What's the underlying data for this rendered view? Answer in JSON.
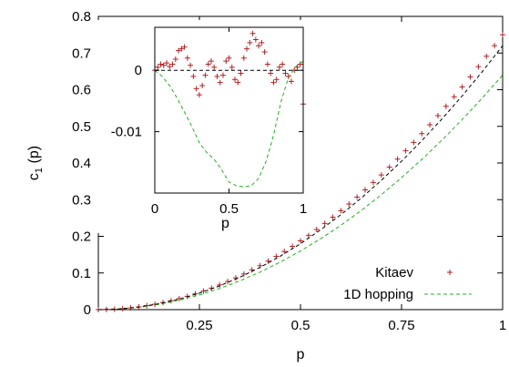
{
  "chart_data": [
    {
      "type": "scatter+line",
      "title": "",
      "xlabel": "p",
      "ylabel": "c",
      "ylabel_sub": "1",
      "ylabel_suffix": " (p)",
      "xlim": [
        0,
        1
      ],
      "ylim": [
        0,
        0.8
      ],
      "xticks": [
        0.25,
        0.5,
        0.75,
        1
      ],
      "xtick_labels": [
        "0.25",
        "0.5",
        "0.75",
        "1"
      ],
      "yticks": [
        0,
        0.1,
        0.2,
        0.3,
        0.4,
        0.5,
        0.6,
        0.7,
        0.8
      ],
      "ytick_labels": [
        "0",
        "0.1",
        "0.2",
        "0.3",
        "0.4",
        "0.5",
        "0.6",
        "0.7",
        "0.8"
      ],
      "grid": false,
      "legend_position": "bottom-right",
      "series": [
        {
          "name": "Kitaev",
          "style": "points",
          "marker": "+",
          "color": "#b22222",
          "x": [
            0.0,
            0.02,
            0.04,
            0.06,
            0.08,
            0.1,
            0.12,
            0.14,
            0.16,
            0.18,
            0.2,
            0.22,
            0.24,
            0.26,
            0.28,
            0.3,
            0.32,
            0.34,
            0.36,
            0.38,
            0.4,
            0.42,
            0.44,
            0.46,
            0.48,
            0.5,
            0.52,
            0.54,
            0.56,
            0.58,
            0.6,
            0.62,
            0.64,
            0.66,
            0.68,
            0.7,
            0.72,
            0.74,
            0.76,
            0.78,
            0.8,
            0.82,
            0.84,
            0.86,
            0.88,
            0.9,
            0.92,
            0.94,
            0.96,
            0.98,
            1.0
          ],
          "y": [
            0.0,
            0.0003,
            0.0012,
            0.0027,
            0.0048,
            0.0075,
            0.0108,
            0.0147,
            0.0192,
            0.0243,
            0.03,
            0.0363,
            0.0432,
            0.0507,
            0.0588,
            0.0675,
            0.0768,
            0.0867,
            0.0972,
            0.1083,
            0.12,
            0.1323,
            0.1452,
            0.1587,
            0.1728,
            0.1875,
            0.2028,
            0.2187,
            0.2352,
            0.2523,
            0.27,
            0.2883,
            0.3072,
            0.3267,
            0.3468,
            0.3675,
            0.3888,
            0.4107,
            0.4332,
            0.4563,
            0.48,
            0.5043,
            0.5292,
            0.5547,
            0.5808,
            0.6075,
            0.6348,
            0.6627,
            0.6912,
            0.7203,
            0.75
          ]
        },
        {
          "name": "1D hopping",
          "style": "dashed",
          "color": "#22b022",
          "x": [
            0.0,
            0.05,
            0.1,
            0.15,
            0.2,
            0.25,
            0.3,
            0.35,
            0.4,
            0.45,
            0.5,
            0.55,
            0.6,
            0.65,
            0.7,
            0.75,
            0.8,
            0.85,
            0.9,
            0.95,
            1.0
          ],
          "y": [
            0.0,
            0.0016,
            0.0064,
            0.0144,
            0.0256,
            0.04,
            0.0576,
            0.0784,
            0.1024,
            0.1296,
            0.16,
            0.1936,
            0.2304,
            0.2704,
            0.3136,
            0.36,
            0.4096,
            0.4624,
            0.5184,
            0.5776,
            0.64
          ]
        },
        {
          "name": "",
          "style": "dashed",
          "color": "#000000",
          "x": [
            0.0,
            0.05,
            0.1,
            0.15,
            0.2,
            0.25,
            0.3,
            0.35,
            0.4,
            0.45,
            0.5,
            0.55,
            0.6,
            0.65,
            0.7,
            0.75,
            0.8,
            0.85,
            0.9,
            0.95,
            1.0
          ],
          "y": [
            0.0,
            0.0018,
            0.0072,
            0.0162,
            0.0288,
            0.045,
            0.0648,
            0.0882,
            0.1152,
            0.1458,
            0.18,
            0.2178,
            0.2592,
            0.3042,
            0.3528,
            0.405,
            0.4608,
            0.5202,
            0.5832,
            0.6498,
            0.72
          ]
        }
      ],
      "legend": [
        {
          "label": "Kitaev",
          "marker": "+",
          "color": "#b22222"
        },
        {
          "label": "1D hopping",
          "line": "dashed",
          "color": "#22b022"
        }
      ]
    },
    {
      "type": "scatter+line",
      "role": "inset",
      "title": "",
      "xlabel": "p",
      "ylabel": "",
      "xlim": [
        0,
        1
      ],
      "ylim": [
        -0.02,
        0.007
      ],
      "xticks": [
        0,
        0.5,
        1
      ],
      "xtick_labels": [
        "0",
        "0.5",
        "1"
      ],
      "yticks": [
        0,
        -0.01
      ],
      "ytick_labels": [
        "0",
        "-0.01"
      ],
      "grid": false,
      "series": [
        {
          "name": "Kitaev",
          "style": "points",
          "marker": "+",
          "color": "#b22222",
          "x": [
            0.0,
            0.02,
            0.04,
            0.06,
            0.08,
            0.1,
            0.12,
            0.14,
            0.16,
            0.18,
            0.2,
            0.22,
            0.24,
            0.26,
            0.28,
            0.3,
            0.32,
            0.34,
            0.36,
            0.38,
            0.4,
            0.42,
            0.44,
            0.46,
            0.48,
            0.5,
            0.52,
            0.54,
            0.56,
            0.58,
            0.6,
            0.62,
            0.64,
            0.66,
            0.68,
            0.7,
            0.72,
            0.74,
            0.76,
            0.78,
            0.8,
            0.82,
            0.84,
            0.86,
            0.88,
            0.9,
            0.92,
            0.94,
            0.96,
            0.98,
            1.0
          ],
          "y": [
            0.0,
            0.0005,
            0.001,
            0.0008,
            0.0012,
            0.0006,
            0.001,
            0.0018,
            0.0032,
            0.0035,
            0.0038,
            0.002,
            0.0008,
            -0.001,
            -0.003,
            -0.004,
            -0.0025,
            -0.0008,
            0.001,
            0.0015,
            0.0005,
            -0.001,
            -0.002,
            -0.0008,
            0.0015,
            0.002,
            0.0005,
            -0.0015,
            -0.002,
            -0.0005,
            0.002,
            0.0035,
            0.0045,
            0.006,
            0.005,
            0.004,
            0.0045,
            0.003,
            0.001,
            -0.0005,
            -0.002,
            -0.0015,
            0.0005,
            0.001,
            -0.0005,
            -0.001,
            -0.0018,
            0.0,
            0.0005,
            0.001,
            -0.0055
          ]
        },
        {
          "name": "1D hopping",
          "style": "dashed",
          "color": "#22b022",
          "x": [
            0.0,
            0.05,
            0.1,
            0.15,
            0.2,
            0.25,
            0.3,
            0.35,
            0.4,
            0.45,
            0.5,
            0.55,
            0.6,
            0.65,
            0.7,
            0.75,
            0.8,
            0.85,
            0.9,
            0.95,
            1.0
          ],
          "y": [
            0.0,
            -0.001,
            -0.0025,
            -0.0045,
            -0.0068,
            -0.0092,
            -0.0118,
            -0.0134,
            -0.0145,
            -0.0162,
            -0.0182,
            -0.0188,
            -0.019,
            -0.0188,
            -0.0176,
            -0.0148,
            -0.0106,
            -0.0052,
            -0.0012,
            0.0006,
            0.0015
          ]
        },
        {
          "name": "",
          "style": "dashed",
          "color": "#000000",
          "x": [
            0.0,
            1.0
          ],
          "y": [
            0.0,
            0.0
          ]
        }
      ]
    }
  ]
}
